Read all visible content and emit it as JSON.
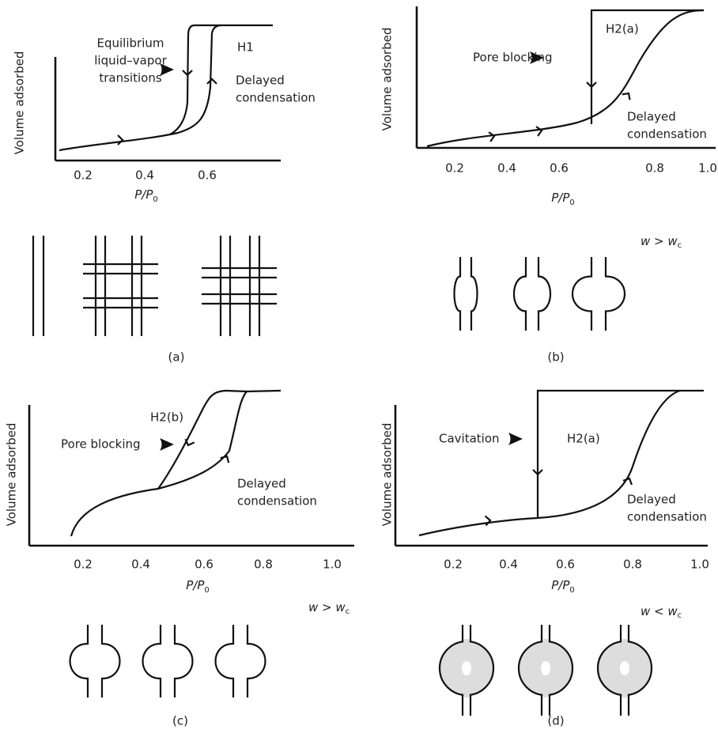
{
  "panels": [
    {
      "caption": "(a)",
      "y_label": "Volume adsorbed",
      "x_label": {
        "main": "P/P",
        "sub": "0"
      },
      "xticks": [
        "0.2",
        "0.4",
        "0.6"
      ],
      "hysteresis_type": "H1",
      "annotations": [
        {
          "lines": [
            "Equilibrium",
            "liquid–vapor",
            "transitions"
          ]
        },
        {
          "lines": [
            "Delayed",
            "condensation"
          ]
        }
      ]
    },
    {
      "caption": "(b)",
      "y_label": "Volume adsorbed",
      "x_label": {
        "main": "P/P",
        "sub": "0"
      },
      "xticks": [
        "0.2",
        "0.4",
        "0.6",
        "0.8",
        "1.0"
      ],
      "hysteresis_type": "H2(a)",
      "annotations": [
        {
          "lines": [
            "Pore blocking"
          ]
        },
        {
          "lines": [
            "Delayed",
            "condensation"
          ]
        }
      ],
      "condition": {
        "main": "w > w",
        "sub": "c"
      }
    },
    {
      "caption": "(c)",
      "y_label": "Volume adsorbed",
      "x_label": {
        "main": "P/P",
        "sub": "0"
      },
      "xticks": [
        "0.2",
        "0.4",
        "0.6",
        "0.8",
        "1.0"
      ],
      "hysteresis_type": "H2(b)",
      "annotations": [
        {
          "lines": [
            "Pore blocking"
          ]
        },
        {
          "lines": [
            "Delayed",
            "condensation"
          ]
        }
      ],
      "condition": {
        "main": "w > w",
        "sub": "c"
      }
    },
    {
      "caption": "(d)",
      "y_label": "Volume adsorbed",
      "x_label": {
        "main": "P/P",
        "sub": "0"
      },
      "xticks": [
        "0.2",
        "0.4",
        "0.6",
        "0.8",
        "1.0"
      ],
      "hysteresis_type": "H2(a)",
      "annotations": [
        {
          "lines": [
            "Cavitation"
          ]
        },
        {
          "lines": [
            "Delayed",
            "condensation"
          ]
        }
      ],
      "condition": {
        "main": "w < w",
        "sub": "c"
      }
    }
  ]
}
